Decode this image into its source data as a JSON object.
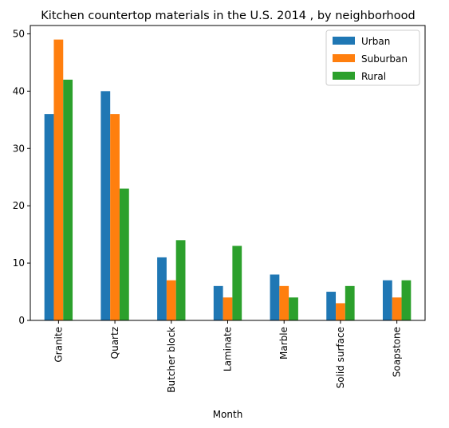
{
  "chart_data": {
    "type": "bar",
    "title": "Kitchen countertop materials in the U.S. 2014 , by neighborhood",
    "xlabel": "Month",
    "ylabel": "",
    "categories": [
      "Granite",
      "Quartz",
      "Butcher block",
      "Laminate",
      "Marble",
      "Solid surface",
      "Soapstone"
    ],
    "series": [
      {
        "name": "Urban",
        "color": "#1f77b4",
        "values": [
          36,
          40,
          11,
          6,
          8,
          5,
          7
        ]
      },
      {
        "name": "Suburban",
        "color": "#ff7f0e",
        "values": [
          49,
          36,
          7,
          4,
          6,
          3,
          4
        ]
      },
      {
        "name": "Rural",
        "color": "#2ca02c",
        "values": [
          42,
          23,
          14,
          13,
          4,
          6,
          7
        ]
      }
    ],
    "yticks": [
      0,
      10,
      20,
      30,
      40,
      50
    ],
    "ylim": [
      0,
      51.45
    ],
    "grid": false,
    "legend_position": "top-right"
  }
}
